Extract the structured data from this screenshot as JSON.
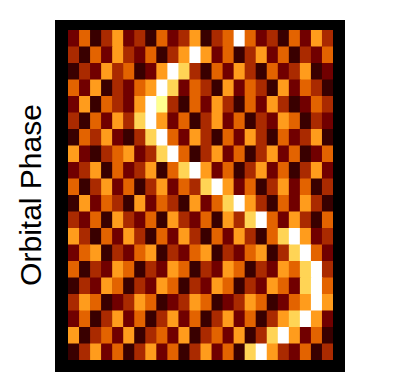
{
  "chart_data": {
    "type": "heatmap",
    "y_label": "Orbital Phase",
    "tick_labels": false,
    "color_range": [
      0,
      9
    ],
    "cells": [
      [
        2,
        4,
        1,
        3,
        5,
        2,
        3,
        1,
        4,
        2,
        3,
        5,
        1,
        3,
        4,
        9,
        4,
        2,
        3,
        1,
        4,
        2,
        5,
        3
      ],
      [
        3,
        1,
        4,
        2,
        5,
        3,
        2,
        4,
        1,
        3,
        5,
        9,
        5,
        2,
        4,
        1,
        3,
        5,
        2,
        4,
        1,
        3,
        2,
        4
      ],
      [
        1,
        3,
        2,
        5,
        3,
        4,
        1,
        2,
        5,
        9,
        6,
        3,
        1,
        4,
        2,
        5,
        3,
        1,
        4,
        2,
        3,
        5,
        1,
        2
      ],
      [
        4,
        2,
        5,
        1,
        3,
        2,
        4,
        5,
        9,
        6,
        2,
        4,
        3,
        1,
        5,
        2,
        4,
        3,
        1,
        5,
        2,
        4,
        3,
        1
      ],
      [
        2,
        5,
        1,
        4,
        3,
        2,
        5,
        9,
        7,
        3,
        1,
        4,
        2,
        5,
        3,
        1,
        4,
        2,
        5,
        3,
        1,
        2,
        4,
        3
      ],
      [
        3,
        1,
        4,
        2,
        5,
        3,
        6,
        9,
        5,
        2,
        4,
        1,
        3,
        5,
        2,
        4,
        1,
        3,
        2,
        5,
        4,
        1,
        3,
        2
      ],
      [
        1,
        4,
        3,
        5,
        2,
        1,
        3,
        6,
        9,
        4,
        2,
        5,
        3,
        1,
        4,
        2,
        5,
        3,
        1,
        4,
        2,
        3,
        5,
        1
      ],
      [
        5,
        2,
        1,
        3,
        4,
        5,
        2,
        3,
        6,
        9,
        4,
        1,
        3,
        5,
        2,
        4,
        1,
        3,
        5,
        2,
        4,
        1,
        2,
        4
      ],
      [
        2,
        3,
        5,
        1,
        4,
        2,
        3,
        5,
        1,
        4,
        6,
        9,
        5,
        2,
        4,
        1,
        3,
        5,
        2,
        4,
        1,
        3,
        5,
        2
      ],
      [
        4,
        1,
        3,
        5,
        2,
        4,
        1,
        3,
        5,
        2,
        4,
        3,
        6,
        9,
        5,
        2,
        4,
        1,
        3,
        5,
        2,
        4,
        1,
        3
      ],
      [
        1,
        5,
        2,
        4,
        3,
        1,
        5,
        2,
        4,
        3,
        1,
        5,
        2,
        4,
        6,
        9,
        5,
        3,
        1,
        4,
        2,
        5,
        3,
        1
      ],
      [
        3,
        2,
        4,
        1,
        5,
        3,
        2,
        4,
        1,
        5,
        3,
        2,
        4,
        1,
        5,
        3,
        6,
        9,
        4,
        2,
        5,
        3,
        1,
        4
      ],
      [
        5,
        3,
        1,
        4,
        2,
        5,
        3,
        1,
        4,
        2,
        5,
        3,
        1,
        4,
        2,
        5,
        3,
        1,
        4,
        6,
        9,
        5,
        2,
        3
      ],
      [
        2,
        4,
        5,
        1,
        3,
        2,
        4,
        5,
        1,
        3,
        2,
        4,
        5,
        1,
        3,
        2,
        4,
        5,
        1,
        3,
        6,
        9,
        4,
        2
      ],
      [
        4,
        1,
        3,
        2,
        5,
        4,
        1,
        3,
        2,
        5,
        4,
        1,
        3,
        2,
        5,
        4,
        1,
        3,
        2,
        5,
        4,
        6,
        9,
        3
      ],
      [
        1,
        3,
        2,
        5,
        4,
        1,
        3,
        2,
        5,
        4,
        1,
        3,
        2,
        5,
        4,
        1,
        3,
        2,
        5,
        4,
        2,
        6,
        9,
        4
      ],
      [
        3,
        5,
        4,
        1,
        2,
        3,
        5,
        4,
        1,
        2,
        3,
        5,
        4,
        1,
        2,
        3,
        5,
        4,
        1,
        2,
        4,
        5,
        9,
        5
      ],
      [
        2,
        4,
        1,
        3,
        5,
        2,
        4,
        1,
        3,
        5,
        2,
        4,
        1,
        3,
        5,
        2,
        4,
        1,
        3,
        5,
        6,
        9,
        5,
        2
      ],
      [
        5,
        1,
        3,
        4,
        2,
        5,
        1,
        3,
        4,
        2,
        5,
        1,
        3,
        4,
        2,
        5,
        1,
        3,
        6,
        9,
        5,
        2,
        4,
        1
      ],
      [
        1,
        3,
        5,
        2,
        4,
        1,
        3,
        5,
        2,
        4,
        1,
        3,
        5,
        2,
        4,
        1,
        6,
        9,
        5,
        3,
        2,
        4,
        1,
        3
      ]
    ]
  }
}
